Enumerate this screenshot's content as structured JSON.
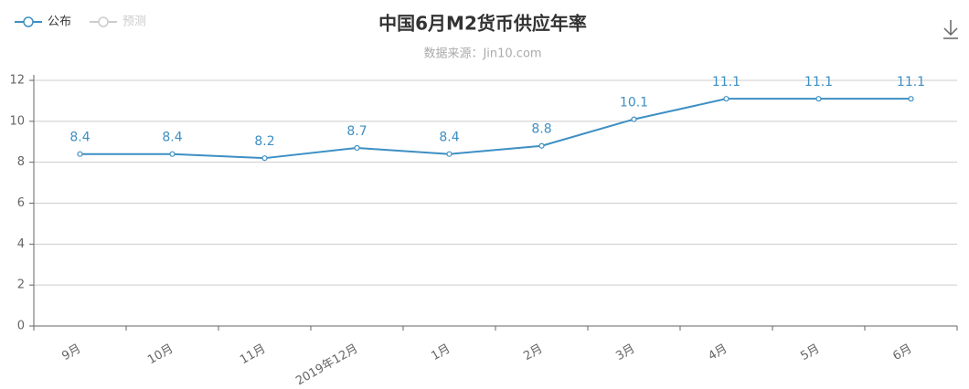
{
  "chart_data": {
    "type": "line",
    "title": "中国6月M2货币供应年率",
    "subtitle": "数据来源：Jin10.com",
    "categories": [
      "9月",
      "10月",
      "11月",
      "2019年12月",
      "1月",
      "2月",
      "3月",
      "4月",
      "5月",
      "6月"
    ],
    "series": [
      {
        "name": "公布",
        "color": "#3d8fc4",
        "values": [
          8.4,
          8.4,
          8.2,
          8.7,
          8.4,
          8.8,
          10.1,
          11.1,
          11.1,
          11.1
        ]
      },
      {
        "name": "预测",
        "color": "#cccccc",
        "values": [
          null,
          null,
          null,
          null,
          null,
          null,
          null,
          null,
          null,
          null
        ]
      }
    ],
    "ylim": [
      0,
      12
    ],
    "yticks": [
      0,
      2,
      4,
      6,
      8,
      10,
      12
    ],
    "grid": true
  }
}
